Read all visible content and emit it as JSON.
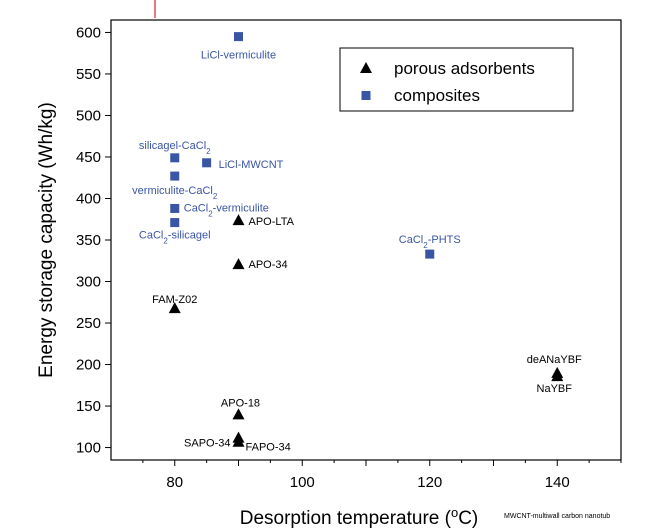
{
  "chart_data": {
    "type": "scatter",
    "xlabel": "Desorption temperature (°C)",
    "ylabel": "Energy storage capacity (Wh/kg)",
    "xlim": [
      70,
      150
    ],
    "ylim": [
      85,
      615
    ],
    "x_ticks": [
      80,
      100,
      120,
      140
    ],
    "y_ticks": [
      100,
      150,
      200,
      250,
      300,
      350,
      400,
      450,
      500,
      550,
      600
    ],
    "grid": false,
    "legend_position": "top-right",
    "series": [
      {
        "name": "porous adsorbents",
        "marker": "triangle",
        "color": "#000000",
        "points": [
          {
            "x": 90,
            "y": 374,
            "label": "APO-LTA"
          },
          {
            "x": 90,
            "y": 321,
            "label": "APO-34"
          },
          {
            "x": 80,
            "y": 268,
            "label": "FAM-Z02"
          },
          {
            "x": 90,
            "y": 140,
            "label": "APO-18"
          },
          {
            "x": 90,
            "y": 112,
            "label": "SAPO-34"
          },
          {
            "x": 90,
            "y": 107,
            "label": "FAPO-34"
          },
          {
            "x": 140,
            "y": 190,
            "label": "deANaYBF"
          },
          {
            "x": 140,
            "y": 186,
            "label": "NaYBF"
          }
        ]
      },
      {
        "name": "composites",
        "marker": "square",
        "color": "#3a55a4",
        "points": [
          {
            "x": 90,
            "y": 595,
            "label": "LiCl-vermiculite"
          },
          {
            "x": 80,
            "y": 449,
            "label": "silicagel-CaCl₂"
          },
          {
            "x": 85,
            "y": 443,
            "label": "LiCl-MWCNT"
          },
          {
            "x": 80,
            "y": 427,
            "label": "vermiculite-CaCl₂"
          },
          {
            "x": 80,
            "y": 388,
            "label": "CaCl₂-vermiculite"
          },
          {
            "x": 80,
            "y": 371,
            "label": "CaCl₂-silicagel"
          },
          {
            "x": 120,
            "y": 333,
            "label": "CaCl₂-PHTS"
          }
        ]
      }
    ],
    "annotation": "MWCNT-multiwall carbon nanotub"
  }
}
